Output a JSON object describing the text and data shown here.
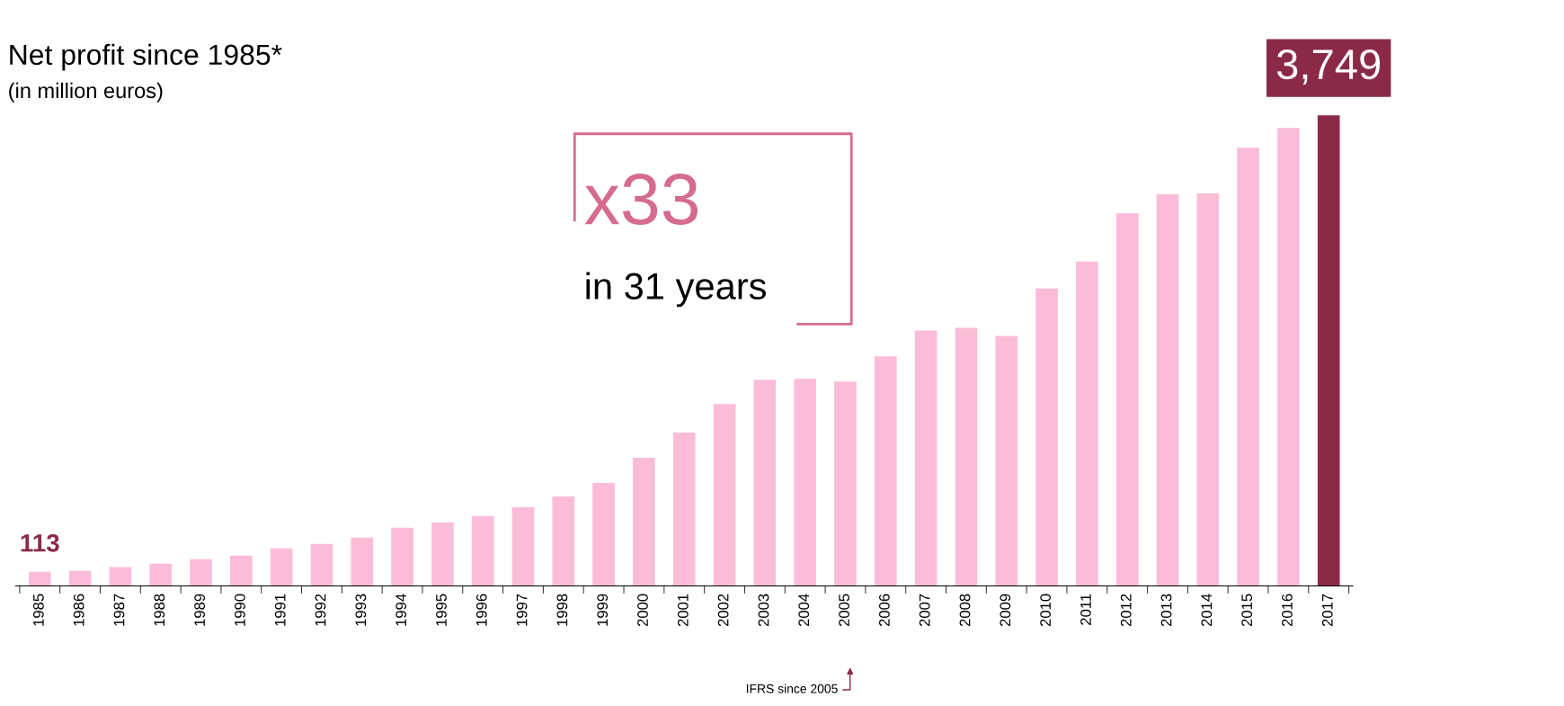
{
  "chart_data": {
    "type": "bar",
    "title": "Net profit since 1985*",
    "subtitle": "(in million euros)",
    "categories": [
      "1985",
      "1986",
      "1987",
      "1988",
      "1989",
      "1990",
      "1991",
      "1992",
      "1993",
      "1994",
      "1995",
      "1996",
      "1997",
      "1998",
      "1999",
      "2000",
      "2001",
      "2002",
      "2003",
      "2004",
      "2005",
      "2006",
      "2007",
      "2008",
      "2009",
      "2010",
      "2011",
      "2012",
      "2013",
      "2014",
      "2015",
      "2016",
      "2017"
    ],
    "values": [
      113,
      121,
      150,
      178,
      214,
      243,
      300,
      336,
      386,
      464,
      507,
      557,
      628,
      714,
      821,
      1021,
      1221,
      1449,
      1642,
      1649,
      1628,
      1828,
      2035,
      2056,
      1992,
      2370,
      2585,
      2970,
      3120,
      3127,
      3491,
      3649,
      3749
    ],
    "colors": [
      "#fbbcd7",
      "#fbbcd7",
      "#fbbcd7",
      "#fbbcd7",
      "#fbbcd7",
      "#fbbcd7",
      "#fbbcd7",
      "#fbbcd7",
      "#fbbcd7",
      "#fbbcd7",
      "#fbbcd7",
      "#fbbcd7",
      "#fbbcd7",
      "#fbbcd7",
      "#fbbcd7",
      "#fbbcd7",
      "#fbbcd7",
      "#fbbcd7",
      "#fbbcd7",
      "#fbbcd7",
      "#fbbcd7",
      "#fbbcd7",
      "#fbbcd7",
      "#fbbcd7",
      "#fbbcd7",
      "#fbbcd7",
      "#fbbcd7",
      "#fbbcd7",
      "#fbbcd7",
      "#fbbcd7",
      "#fbbcd7",
      "#fbbcd7",
      "#8b2a48"
    ],
    "value_labels": [
      "113",
      null,
      null,
      null,
      null,
      null,
      null,
      null,
      null,
      null,
      null,
      null,
      null,
      null,
      null,
      null,
      null,
      null,
      null,
      null,
      null,
      null,
      null,
      null,
      null,
      null,
      null,
      null,
      null,
      null,
      null,
      null,
      "3,749"
    ],
    "tick_labels": "x",
    "grid": false,
    "legend": false,
    "annotations": [
      "x33",
      "in 31 years",
      "IFRS since 2005"
    ]
  }
}
